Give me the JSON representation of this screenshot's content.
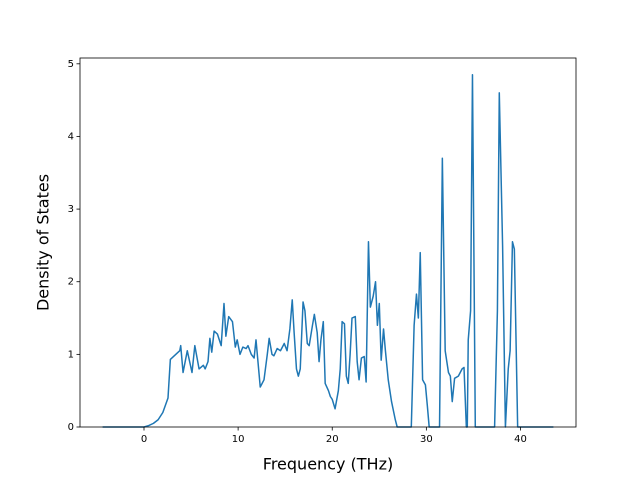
{
  "chart_data": {
    "type": "line",
    "x_label": "Frequency (THz)",
    "y_label": "Density of States",
    "color": "#1f77b4",
    "xlim": [
      -6.8,
      45.9
    ],
    "ylim": [
      0,
      5.08
    ],
    "xticks": [
      0,
      10,
      20,
      30,
      40
    ],
    "yticks": [
      0,
      1,
      2,
      3,
      4,
      5
    ],
    "grid": false,
    "x": [
      -4.4,
      0,
      0.5,
      1,
      1.5,
      2,
      2.55,
      2.8,
      3.8,
      3.9,
      4.15,
      4.6,
      5.1,
      5.4,
      5.85,
      6.3,
      6.5,
      6.8,
      7.0,
      7.2,
      7.45,
      7.8,
      8.2,
      8.5,
      8.7,
      9.0,
      9.4,
      9.7,
      9.9,
      10.2,
      10.5,
      10.85,
      11.05,
      11.4,
      11.7,
      11.9,
      12.35,
      12.75,
      13.1,
      13.3,
      13.6,
      13.8,
      14.15,
      14.5,
      14.9,
      15.2,
      15.5,
      15.75,
      15.95,
      16.2,
      16.4,
      16.6,
      16.9,
      17.1,
      17.35,
      17.55,
      17.9,
      18.1,
      18.4,
      18.6,
      18.8,
      19.05,
      19.25,
      19.6,
      19.8,
      20.0,
      20.3,
      20.65,
      20.85,
      21.05,
      21.3,
      21.5,
      21.7,
      21.9,
      22.1,
      22.45,
      22.65,
      22.85,
      23.1,
      23.4,
      23.6,
      23.85,
      24.05,
      24.35,
      24.6,
      24.8,
      25.0,
      25.2,
      25.45,
      25.65,
      25.95,
      26.3,
      26.7,
      26.9,
      28.4,
      28.7,
      28.95,
      29.15,
      29.35,
      29.6,
      29.9,
      30.1,
      30.3,
      31.4,
      31.7,
      32.0,
      32.35,
      32.55,
      32.75,
      33.0,
      33.4,
      33.8,
      34.0,
      34.25,
      34.35,
      34.45,
      34.7,
      34.9,
      35.2,
      37.25,
      37.55,
      37.75,
      38.1,
      38.4,
      38.7,
      38.9,
      39.15,
      39.35,
      39.7,
      43.5
    ],
    "values": [
      0,
      0,
      0.02,
      0.05,
      0.1,
      0.2,
      0.4,
      0.93,
      1.05,
      1.12,
      0.75,
      1.05,
      0.75,
      1.12,
      0.8,
      0.85,
      0.8,
      0.9,
      1.22,
      1.03,
      1.32,
      1.28,
      1.12,
      1.7,
      1.25,
      1.52,
      1.45,
      1.1,
      1.2,
      1.0,
      1.1,
      1.08,
      1.12,
      1.0,
      0.95,
      1.2,
      0.55,
      0.65,
      1.0,
      1.22,
      1.0,
      0.98,
      1.08,
      1.05,
      1.15,
      1.05,
      1.35,
      1.75,
      1.3,
      0.8,
      0.7,
      0.8,
      1.72,
      1.6,
      1.15,
      1.12,
      1.4,
      1.55,
      1.3,
      0.9,
      1.2,
      1.45,
      0.6,
      0.5,
      0.42,
      0.38,
      0.25,
      0.5,
      0.8,
      1.45,
      1.42,
      0.7,
      0.6,
      1.0,
      1.5,
      1.52,
      0.9,
      0.65,
      0.95,
      0.97,
      0.62,
      2.55,
      1.65,
      1.8,
      2.0,
      1.4,
      1.7,
      0.92,
      1.35,
      1.05,
      0.65,
      0.35,
      0.1,
      0,
      0,
      1.4,
      1.83,
      1.5,
      2.4,
      0.65,
      0.58,
      0.3,
      0,
      0,
      3.7,
      1.05,
      0.75,
      0.7,
      0.35,
      0.67,
      0.7,
      0.8,
      0.82,
      0,
      0,
      1.2,
      1.6,
      4.85,
      0,
      0,
      1.6,
      4.6,
      2.5,
      0,
      0.8,
      1.05,
      2.55,
      2.45,
      0,
      0
    ]
  }
}
